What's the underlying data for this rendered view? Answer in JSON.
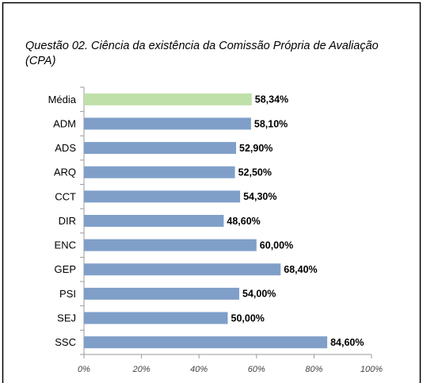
{
  "chart_data": {
    "type": "bar",
    "orientation": "horizontal",
    "title": "Questão 02. Ciência da existência da Comissão Própria de Avaliação (CPA)",
    "categories": [
      "Média",
      "ADM",
      "ADS",
      "ARQ",
      "CCT",
      "DIR",
      "ENC",
      "GEP",
      "PSI",
      "SEJ",
      "SSC"
    ],
    "values": [
      58.34,
      58.1,
      52.9,
      52.5,
      54.3,
      48.6,
      60.0,
      68.4,
      54.0,
      50.0,
      84.6
    ],
    "value_labels": [
      "58,34%",
      "58,10%",
      "52,90%",
      "52,50%",
      "54,30%",
      "48,60%",
      "60,00%",
      "68,40%",
      "54,00%",
      "50,00%",
      "84,60%"
    ],
    "colors": [
      "#bfe0a8",
      "#7f9fc9",
      "#7f9fc9",
      "#7f9fc9",
      "#7f9fc9",
      "#7f9fc9",
      "#7f9fc9",
      "#7f9fc9",
      "#7f9fc9",
      "#7f9fc9",
      "#7f9fc9"
    ],
    "xlim": [
      0,
      100
    ],
    "xticks": [
      {
        "value": 0,
        "label": "0%"
      },
      {
        "value": 20,
        "label": "20%"
      },
      {
        "value": 40,
        "label": "40%"
      },
      {
        "value": 60,
        "label": "60%"
      },
      {
        "value": 80,
        "label": "80%"
      },
      {
        "value": 100,
        "label": "100%"
      }
    ]
  }
}
